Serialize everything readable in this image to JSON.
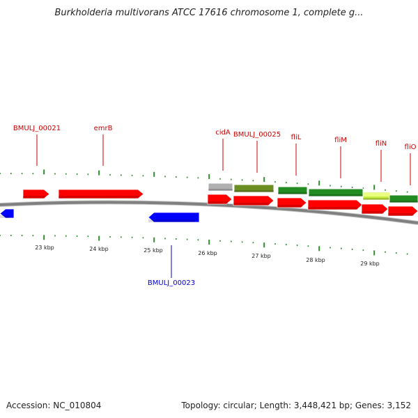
{
  "header": {
    "title": "Burkholderia multivorans ATCC 17616 chromosome 1, complete g..."
  },
  "footer": {
    "accession": "Accession: NC_010804",
    "summary": "Topology: circular; Length: 3,448,421 bp; Genes: 3,152"
  },
  "colors": {
    "backbone": "#808080",
    "tick": "#2e8b2e",
    "forward_gene": "#ff0000",
    "reverse_gene": "#0000ff",
    "label_forward": "#cc0000",
    "label_reverse": "#0000cc",
    "cog_gray": "#b0b0b0",
    "cog_olive": "#6b8e23",
    "cog_green": "#228b22",
    "cog_lime": "#c8f040"
  },
  "scale": {
    "kbp_labels": [
      "23 kbp",
      "24 kbp",
      "25 kbp",
      "26 kbp",
      "27 kbp",
      "28 kbp",
      "29 kbp"
    ]
  },
  "genes": [
    {
      "label": "",
      "strand": "reverse",
      "color": "reverse_gene"
    },
    {
      "label": "BMULJ_00021",
      "strand": "forward",
      "color": "forward_gene"
    },
    {
      "label": "emrB",
      "strand": "forward",
      "color": "forward_gene"
    },
    {
      "label": "BMULJ_00023",
      "strand": "reverse",
      "color": "reverse_gene"
    },
    {
      "label": "cidA",
      "strand": "forward",
      "color": "forward_gene"
    },
    {
      "label": "BMULJ_00025",
      "strand": "forward",
      "color": "forward_gene"
    },
    {
      "label": "fliL",
      "strand": "forward",
      "color": "forward_gene"
    },
    {
      "label": "fliM",
      "strand": "forward",
      "color": "forward_gene"
    },
    {
      "label": "fliN",
      "strand": "forward",
      "color": "forward_gene"
    },
    {
      "label": "fliO",
      "strand": "forward",
      "color": "forward_gene"
    }
  ],
  "cog_features": [
    {
      "gene": "cidA",
      "color": "cog_gray"
    },
    {
      "gene": "BMULJ_00025",
      "color": "cog_olive"
    },
    {
      "gene": "fliL",
      "color": "cog_green"
    },
    {
      "gene": "fliM",
      "color": "cog_green"
    },
    {
      "gene": "fliN",
      "color": "cog_lime"
    },
    {
      "gene": "fliO",
      "color": "cog_green"
    }
  ]
}
